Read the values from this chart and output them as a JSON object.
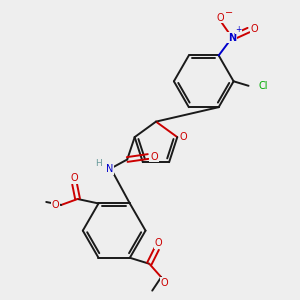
{
  "colors": {
    "bond": "#1a1a1a",
    "oxygen": "#cc0000",
    "nitrogen": "#0000cc",
    "chlorine": "#00aa00",
    "hydrogen": "#669999",
    "background": "#eeeeee"
  },
  "layout": {
    "xlim": [
      0,
      10
    ],
    "ylim": [
      0,
      11
    ]
  }
}
